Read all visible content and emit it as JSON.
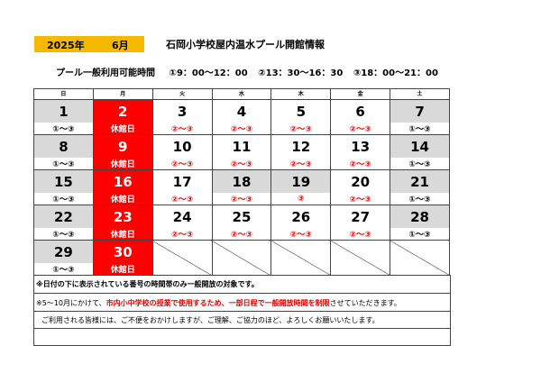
{
  "header": {
    "year": "2025年",
    "month": "6月",
    "title": "石岡小学校屋内温水プール開館情報"
  },
  "hours": {
    "label": "プール一般利用可能時間",
    "slots": [
      "①9：00～12：00",
      "②13：30～16：30",
      "③18：00～21：00"
    ]
  },
  "calendar": {
    "weekdays": [
      "日",
      "月",
      "火",
      "水",
      "木",
      "金",
      "土"
    ],
    "weeks": [
      [
        {
          "day": "1",
          "note": "①～③"
        },
        {
          "day": "2",
          "note": "休館日",
          "closed": true
        },
        {
          "day": "3",
          "note": "②～③"
        },
        {
          "day": "4",
          "note": "②～③"
        },
        {
          "day": "5",
          "note": "②～③"
        },
        {
          "day": "6",
          "note": "②～③"
        },
        {
          "day": "7",
          "note": "①～③"
        }
      ],
      [
        {
          "day": "8",
          "note": "①～③"
        },
        {
          "day": "9",
          "note": "休館日",
          "closed": true
        },
        {
          "day": "10",
          "note": "②～③"
        },
        {
          "day": "11",
          "note": "②～③"
        },
        {
          "day": "12",
          "note": "②～③"
        },
        {
          "day": "13",
          "note": "②～③"
        },
        {
          "day": "14",
          "note": "①～③"
        }
      ],
      [
        {
          "day": "15",
          "note": "①～③"
        },
        {
          "day": "16",
          "note": "休館日",
          "closed": true
        },
        {
          "day": "17",
          "note": "②～③"
        },
        {
          "day": "18",
          "note": "②～③"
        },
        {
          "day": "19",
          "note": "③"
        },
        {
          "day": "20",
          "note": "②～③"
        },
        {
          "day": "21",
          "note": "①～③"
        }
      ],
      [
        {
          "day": "22",
          "note": "①～③"
        },
        {
          "day": "23",
          "note": "休館日",
          "closed": true
        },
        {
          "day": "24",
          "note": "②～③"
        },
        {
          "day": "25",
          "note": "②～③"
        },
        {
          "day": "26",
          "note": "②～③"
        },
        {
          "day": "27",
          "note": "②～③"
        },
        {
          "day": "28",
          "note": "①～③"
        }
      ],
      [
        {
          "day": "29",
          "note": "①～③"
        },
        {
          "day": "30",
          "note": "休館日",
          "closed": true
        },
        null,
        null,
        null,
        null,
        null
      ]
    ]
  },
  "notes": {
    "line1": "※日付の下に表示されている番号の時間帯のみ一般開放の対象です。",
    "line2_prefix": "※5～10月にかけて、",
    "line2_red": "市内小中学校の授業で使用するため、一部日程で一般開放時間を制限",
    "line2_suffix": "させていただきます。",
    "line3": "ご利用される皆様には、ご不便をおかけしますが、ご理解、ご協力のほど、よろしくお願いいたします。"
  },
  "colors": {
    "year_bg": "#f7b900",
    "closed_bg": "#ff0000",
    "weekday_note": "#e00000",
    "weekend_bg": "#d9d9d9"
  }
}
